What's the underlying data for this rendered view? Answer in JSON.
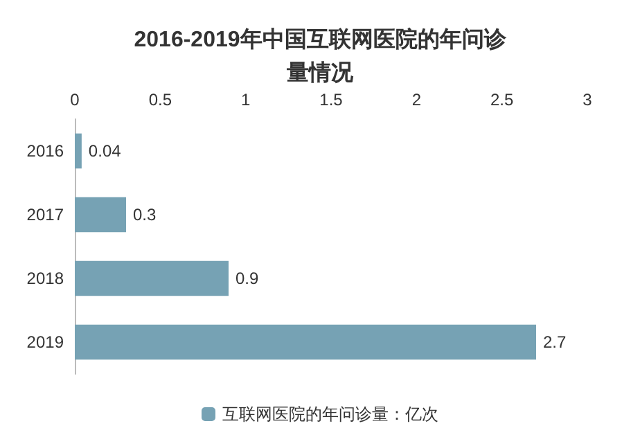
{
  "chart_data": {
    "type": "bar",
    "orientation": "horizontal",
    "title": "2016-2019年中国互联网医院的年问诊量情况",
    "categories": [
      "2016",
      "2017",
      "2018",
      "2019"
    ],
    "series": [
      {
        "name": "互联网医院的年问诊量：亿次",
        "color": "#76a2b4",
        "values": [
          0.04,
          0.3,
          0.9,
          2.7
        ]
      }
    ],
    "xlim": [
      0,
      3
    ],
    "xticks": [
      0,
      0.5,
      1,
      1.5,
      2,
      2.5,
      3
    ],
    "data_labels": true,
    "legend": "bottom",
    "grid": false
  }
}
